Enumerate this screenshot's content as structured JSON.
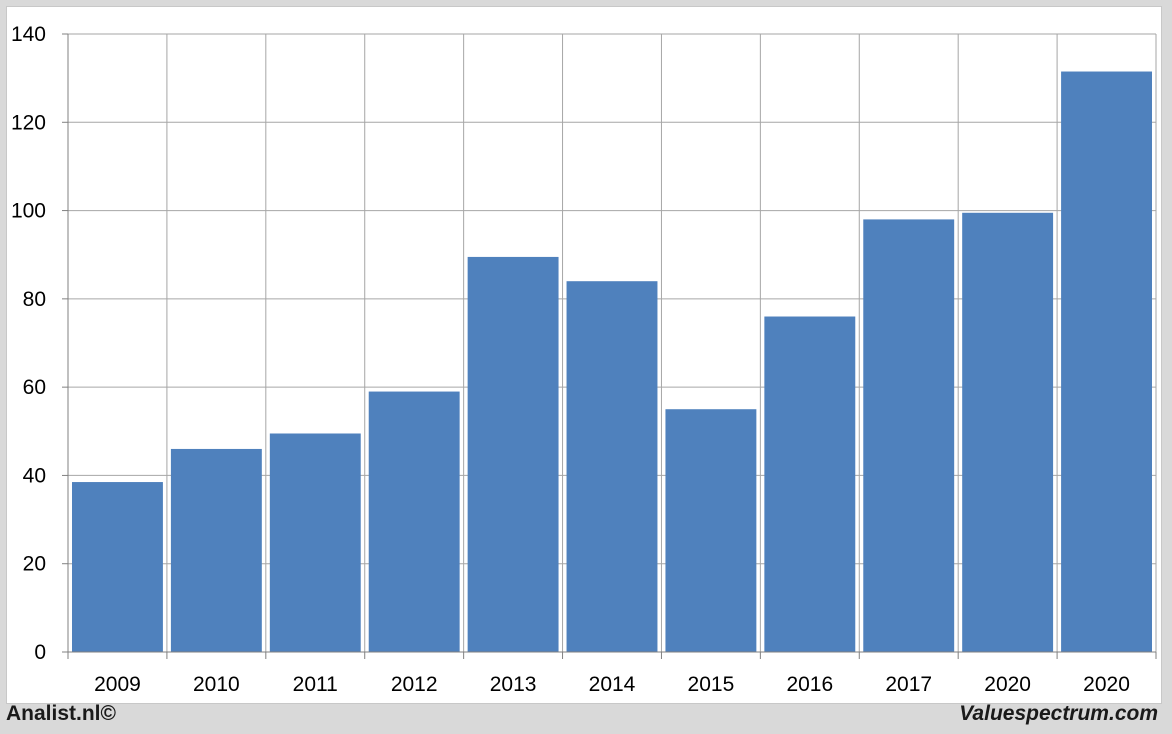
{
  "chart_data": {
    "type": "bar",
    "categories": [
      "2009",
      "2010",
      "2011",
      "2012",
      "2013",
      "2014",
      "2015",
      "2016",
      "2017",
      "2020",
      "2020"
    ],
    "values": [
      38.5,
      46,
      49.5,
      59,
      89.5,
      84,
      55,
      76,
      98,
      99.5,
      131.5
    ],
    "title": "",
    "xlabel": "",
    "ylabel": "",
    "ylim": [
      0,
      140
    ],
    "yticks": [
      0,
      20,
      40,
      60,
      80,
      100,
      120,
      140
    ],
    "grid": true,
    "bar_color": "#4f81bd",
    "grid_color": "#a6a6a6"
  },
  "footer": {
    "left": "Analist.nl©",
    "right": "Valuespectrum.com"
  }
}
